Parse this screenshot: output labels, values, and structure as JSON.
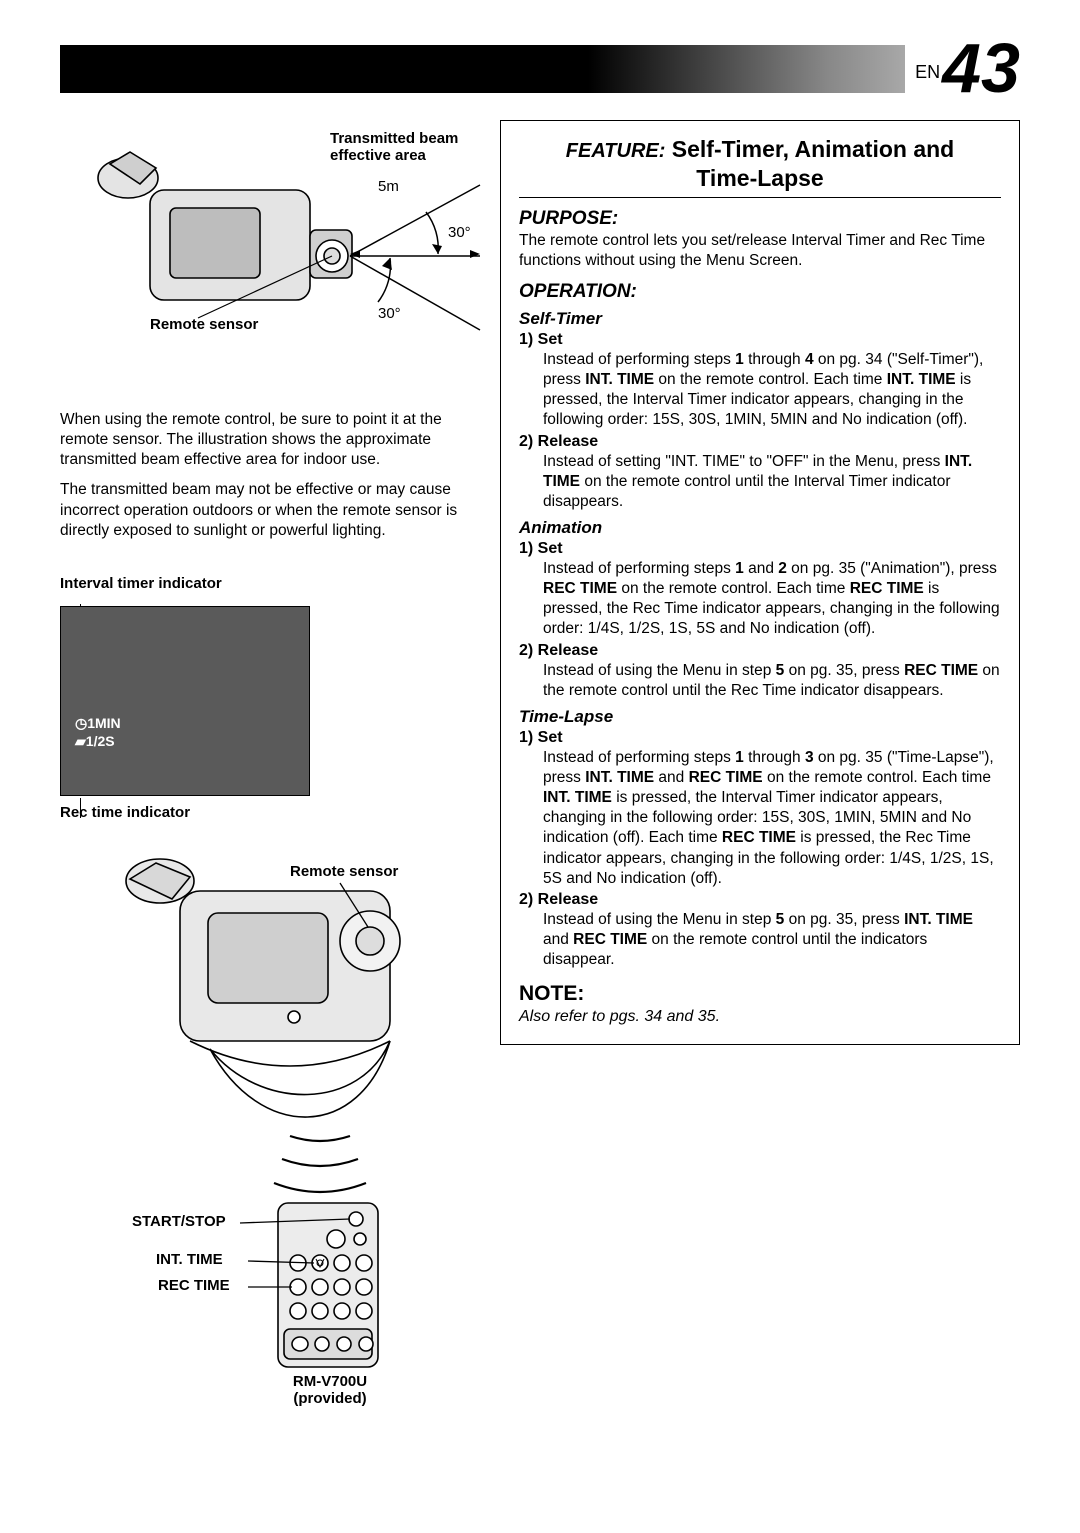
{
  "page": {
    "lang_prefix": "EN",
    "number": "43"
  },
  "diagA": {
    "label_beam_l1": "Transmitted beam",
    "label_beam_l2": "effective area",
    "dist": "5m",
    "angle_top": "30°",
    "angle_bot": "30°",
    "remote_sensor": "Remote sensor"
  },
  "left_text": {
    "p1": "When using the remote control, be sure to point it at the remote sensor. The illustration shows the approximate transmitted beam effective area for indoor use.",
    "p2": "The transmitted beam may not be effective or may cause incorrect operation outdoors or when the remote sensor is directly exposed to sunlight or powerful lighting."
  },
  "screen": {
    "top_label": "Interval timer indicator",
    "bot_label": "Rec time indicator",
    "line1": "1MIN",
    "line2": "1/2S",
    "bg": "#5a5a5a",
    "text_color": "#ffffff"
  },
  "diagB": {
    "remote_sensor": "Remote sensor",
    "startstop": "START/STOP",
    "inttime": "INT. TIME",
    "rectime": "REC TIME",
    "model_l1": "RM-V700U",
    "model_l2": "(provided)"
  },
  "feature": {
    "prefix": "FEATURE:",
    "title_l1": "Self-Timer, Animation and",
    "title_l2": "Time-Lapse"
  },
  "purpose": {
    "heading": "PURPOSE:",
    "text": "The remote control lets you set/release Interval Timer and Rec Time functions without using the Menu Screen."
  },
  "operation": {
    "heading": "OPERATION:"
  },
  "selftimer": {
    "heading": "Self-Timer",
    "s1h": "1) Set",
    "s1p": "Instead of performing steps <b>1</b> through <b>4</b> on pg. 34 (\"Self-Timer\"), press <b>INT. TIME</b> on the remote control. Each time <b>INT. TIME</b> is pressed, the Interval Timer indicator appears, changing in the following order: 15S, 30S, 1MIN, 5MIN and No indication (off).",
    "s2h": "2) Release",
    "s2p": "Instead of setting \"INT. TIME\" to \"OFF\" in the Menu, press <b>INT. TIME</b> on the remote control until the Interval Timer indicator disappears."
  },
  "animation": {
    "heading": "Animation",
    "s1h": "1) Set",
    "s1p": "Instead of performing steps <b>1</b> and <b>2</b> on pg. 35 (\"Animation\"), press <b>REC TIME</b> on the remote control. Each time <b>REC TIME</b> is pressed, the Rec Time indicator appears, changing in the following order: 1/4S, 1/2S, 1S, 5S and No indication (off).",
    "s2h": "2) Release",
    "s2p": "Instead of using the Menu in step <b>5</b> on pg. 35, press <b>REC TIME</b> on the remote control until the Rec Time indicator disappears."
  },
  "timelapse": {
    "heading": "Time-Lapse",
    "s1h": "1) Set",
    "s1p": "Instead of performing steps <b>1</b> through <b>3</b> on pg. 35 (\"Time-Lapse\"), press <b>INT. TIME</b> and <b>REC TIME</b> on the remote control. Each time <b>INT. TIME</b> is pressed, the Interval Timer indicator appears, changing in the following order: 15S, 30S, 1MIN, 5MIN and No indication (off). Each time <b>REC TIME</b> is pressed, the Rec Time indicator appears, changing in the following order: 1/4S, 1/2S, 1S, 5S and No indication (off).",
    "s2h": "2) Release",
    "s2p": "Instead of using the Menu in step <b>5</b> on pg. 35, press <b>INT. TIME</b> and <b>REC TIME</b> on the remote control until the indicators disappear."
  },
  "note": {
    "heading": "NOTE:",
    "text": "Also refer to pgs. 34 and 35."
  },
  "colors": {
    "page_bg": "#ffffff",
    "text": "#000000",
    "topbar_dark": "#000000",
    "topbar_light": "#d8d8d8"
  }
}
